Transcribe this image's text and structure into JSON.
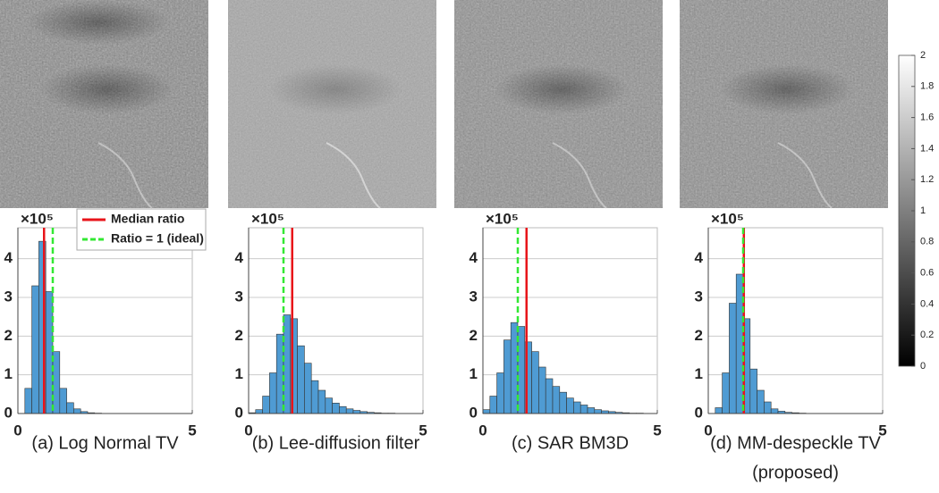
{
  "legend": {
    "median": {
      "label": "Median ratio",
      "color": "#e8141a"
    },
    "ideal": {
      "label": "Ratio = 1 (ideal)",
      "color": "#33e833"
    }
  },
  "colorbar": {
    "lim": [
      0,
      2
    ],
    "ticks": [
      0,
      0.2,
      0.4,
      0.6,
      0.8,
      1,
      1.2,
      1.4,
      1.6,
      1.8,
      2
    ]
  },
  "chart_data": [
    {
      "type": "histogram",
      "caption": [
        "(a) Log Normal TV"
      ],
      "y_multiplier": "×10⁵",
      "bins": [
        0,
        0.2,
        0.4,
        0.6,
        0.8,
        1,
        1.2,
        1.4,
        1.6,
        1.8,
        2,
        2.2,
        2.4,
        2.6,
        2.8,
        3,
        3.2,
        3.4,
        3.6,
        3.8,
        4,
        4.2,
        4.4,
        4.6,
        4.8,
        5
      ],
      "values": [
        0,
        0.65,
        3.3,
        4.45,
        3.15,
        1.6,
        0.65,
        0.28,
        0.12,
        0.05,
        0.02,
        0.01,
        0,
        0,
        0,
        0,
        0,
        0,
        0,
        0,
        0,
        0,
        0,
        0,
        0
      ],
      "color": "#4f9bd3",
      "median_ratio": 0.75,
      "ideal_ratio": 1,
      "xlim": [
        0,
        5
      ],
      "xticks": [
        0,
        5
      ],
      "ylim": [
        0,
        4.8
      ],
      "yticks": [
        0,
        1,
        2,
        3,
        4
      ],
      "grid": true
    },
    {
      "type": "histogram",
      "caption": [
        "(b) Lee-diffusion filter"
      ],
      "y_multiplier": "×10⁵",
      "bins": [
        0,
        0.2,
        0.4,
        0.6,
        0.8,
        1,
        1.2,
        1.4,
        1.6,
        1.8,
        2,
        2.2,
        2.4,
        2.6,
        2.8,
        3,
        3.2,
        3.4,
        3.6,
        3.8,
        4,
        4.2,
        4.4,
        4.6,
        4.8,
        5
      ],
      "values": [
        0.02,
        0.1,
        0.45,
        1.05,
        2.05,
        2.55,
        2.45,
        1.75,
        1.3,
        0.85,
        0.6,
        0.4,
        0.27,
        0.18,
        0.12,
        0.08,
        0.05,
        0.03,
        0.02,
        0.01,
        0.01,
        0,
        0,
        0,
        0
      ],
      "color": "#4f9bd3",
      "median_ratio": 1.25,
      "ideal_ratio": 1,
      "xlim": [
        0,
        5
      ],
      "xticks": [
        0,
        5
      ],
      "ylim": [
        0,
        4.8
      ],
      "yticks": [
        0,
        1,
        2,
        3,
        4
      ],
      "grid": true
    },
    {
      "type": "histogram",
      "caption": [
        "(c) SAR BM3D"
      ],
      "y_multiplier": "×10⁵",
      "bins": [
        0,
        0.2,
        0.4,
        0.6,
        0.8,
        1,
        1.2,
        1.4,
        1.6,
        1.8,
        2,
        2.2,
        2.4,
        2.6,
        2.8,
        3,
        3.2,
        3.4,
        3.6,
        3.8,
        4,
        4.2,
        4.4,
        4.6,
        4.8,
        5
      ],
      "values": [
        0.1,
        0.45,
        1.05,
        1.9,
        2.35,
        2.25,
        1.85,
        1.6,
        1.2,
        0.9,
        0.7,
        0.55,
        0.4,
        0.3,
        0.22,
        0.15,
        0.1,
        0.07,
        0.05,
        0.03,
        0.02,
        0.01,
        0.01,
        0,
        0
      ],
      "color": "#4f9bd3",
      "median_ratio": 1.25,
      "ideal_ratio": 1,
      "xlim": [
        0,
        5
      ],
      "xticks": [
        0,
        5
      ],
      "ylim": [
        0,
        4.8
      ],
      "yticks": [
        0,
        1,
        2,
        3,
        4
      ],
      "grid": true
    },
    {
      "type": "histogram",
      "caption": [
        "(d) MM-despeckle TV",
        "(proposed)"
      ],
      "y_multiplier": "×10⁵",
      "bins": [
        0,
        0.2,
        0.4,
        0.6,
        0.8,
        1,
        1.2,
        1.4,
        1.6,
        1.8,
        2,
        2.2,
        2.4,
        2.6,
        2.8,
        3,
        3.2,
        3.4,
        3.6,
        3.8,
        4,
        4.2,
        4.4,
        4.6,
        4.8,
        5
      ],
      "values": [
        0,
        0.15,
        1.05,
        2.85,
        3.6,
        2.45,
        1.15,
        0.6,
        0.3,
        0.12,
        0.06,
        0.03,
        0.02,
        0.01,
        0,
        0,
        0,
        0,
        0,
        0,
        0,
        0,
        0,
        0,
        0
      ],
      "color": "#4f9bd3",
      "median_ratio": 1.02,
      "ideal_ratio": 1,
      "xlim": [
        0,
        5
      ],
      "xticks": [
        0,
        5
      ],
      "ylim": [
        0,
        4.8
      ],
      "yticks": [
        0,
        1,
        2,
        3,
        4
      ],
      "grid": true
    }
  ]
}
